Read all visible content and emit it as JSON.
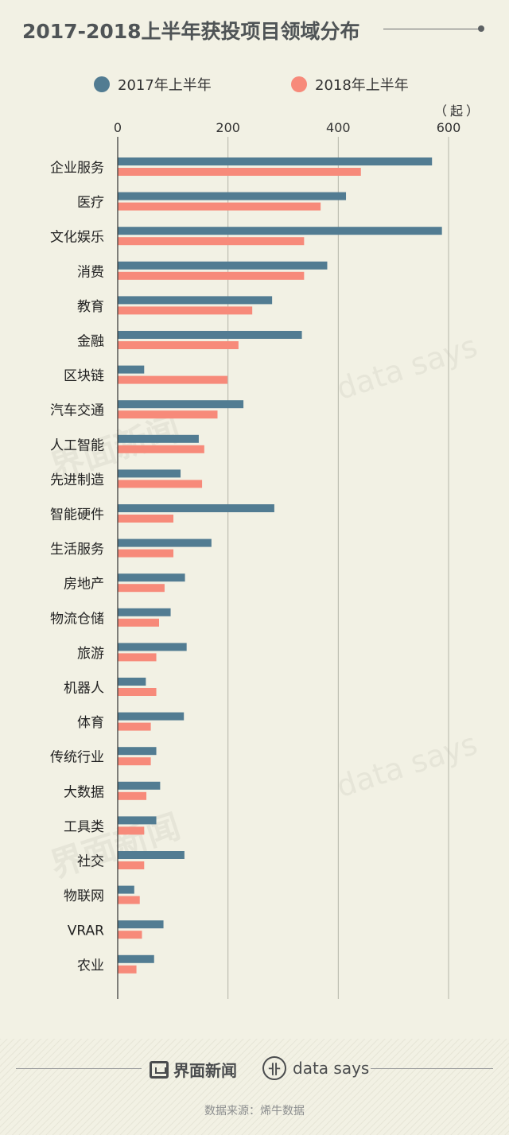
{
  "title": "2017-2018上半年获投项目领域分布",
  "legend": [
    {
      "label": "2017年上半年",
      "color": "#527c92"
    },
    {
      "label": "2018年上半年",
      "color": "#f78a7a"
    }
  ],
  "unit": "（起）",
  "footer": {
    "brand_cn": "界面新闻",
    "brand_en": "data says",
    "source": "数据来源：烯牛数据"
  },
  "watermarks": {
    "cn": "界面新闻",
    "en": "data says"
  },
  "chart_data": {
    "type": "bar",
    "orientation": "horizontal",
    "categories": [
      "企业服务",
      "医疗",
      "文化娱乐",
      "消费",
      "教育",
      "金融",
      "区块链",
      "汽车交通",
      "人工智能",
      "先进制造",
      "智能硬件",
      "生活服务",
      "房地产",
      "物流仓储",
      "旅游",
      "机器人",
      "体育",
      "传统行业",
      "大数据",
      "工具类",
      "社交",
      "物联网",
      "VRAR",
      "农业"
    ],
    "series": [
      {
        "name": "2017年上半年",
        "color": "#527c92",
        "values": [
          570,
          414,
          588,
          380,
          280,
          334,
          48,
          228,
          147,
          114,
          284,
          170,
          122,
          96,
          125,
          51,
          120,
          70,
          77,
          70,
          121,
          30,
          83,
          66
        ]
      },
      {
        "name": "2018年上半年",
        "color": "#f78a7a",
        "values": [
          441,
          368,
          338,
          338,
          244,
          219,
          199,
          181,
          157,
          153,
          101,
          101,
          85,
          75,
          70,
          70,
          60,
          60,
          52,
          48,
          48,
          40,
          44,
          34
        ]
      }
    ],
    "xlim": [
      0,
      600
    ],
    "ticks": [
      0,
      200,
      400,
      600
    ],
    "grid": true,
    "legend_position": "top"
  }
}
